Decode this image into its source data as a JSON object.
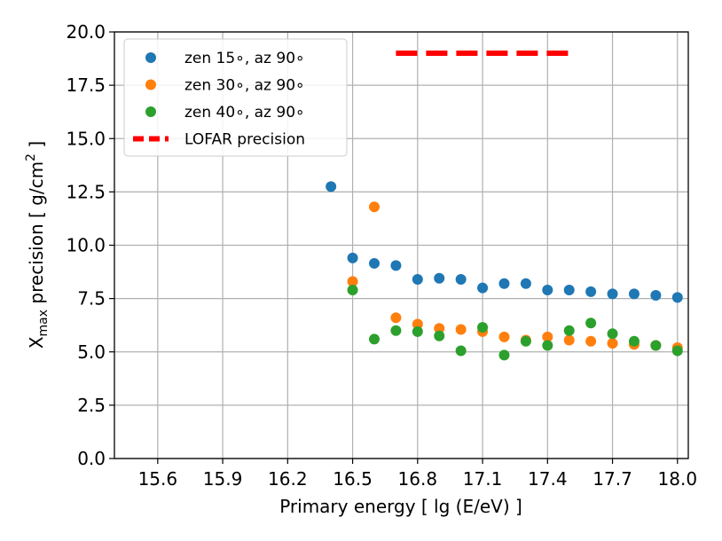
{
  "chart_data": {
    "type": "scatter",
    "xlabel": "Primary energy [ lg (E/eV) ]",
    "ylabel": {
      "prefix": "X",
      "sub": "max",
      "middle": " precision [ g/cm",
      "sup": "2",
      "suffix": " ]"
    },
    "xlim": [
      15.4,
      18.05
    ],
    "ylim": [
      0,
      20
    ],
    "x_ticks": [
      15.6,
      15.9,
      16.2,
      16.5,
      16.8,
      17.1,
      17.4,
      17.7,
      18.0
    ],
    "x_tick_labels": [
      "15.6",
      "15.9",
      "16.2",
      "16.5",
      "16.8",
      "17.1",
      "17.4",
      "17.7",
      "18.0"
    ],
    "y_ticks": [
      0,
      2.5,
      5,
      7.5,
      10,
      12.5,
      15,
      17.5,
      20
    ],
    "y_tick_labels": [
      "0.0",
      "2.5",
      "5.0",
      "7.5",
      "10.0",
      "12.5",
      "15.0",
      "17.5",
      "20.0"
    ],
    "grid": true,
    "legend_position": "top-left",
    "series": [
      {
        "name": "zen 15∘, az 90∘",
        "color": "#1f77b4",
        "marker": "circle",
        "x": [
          16.4,
          16.5,
          16.6,
          16.7,
          16.8,
          16.9,
          17.0,
          17.1,
          17.2,
          17.3,
          17.4,
          17.5,
          17.6,
          17.7,
          17.8,
          17.9,
          18.0
        ],
        "y": [
          12.75,
          9.4,
          9.15,
          9.05,
          8.4,
          8.45,
          8.4,
          8.0,
          8.2,
          8.2,
          7.9,
          7.9,
          7.82,
          7.72,
          7.72,
          7.65,
          7.55
        ]
      },
      {
        "name": "zen 30∘, az 90∘",
        "color": "#ff7f0e",
        "marker": "circle",
        "x": [
          16.5,
          16.6,
          16.7,
          16.8,
          16.9,
          17.0,
          17.1,
          17.2,
          17.3,
          17.4,
          17.5,
          17.6,
          17.7,
          17.8,
          17.9,
          18.0
        ],
        "y": [
          8.3,
          11.8,
          6.6,
          6.3,
          6.1,
          6.05,
          5.95,
          5.7,
          5.55,
          5.7,
          5.55,
          5.5,
          5.4,
          5.35,
          5.3,
          5.2
        ]
      },
      {
        "name": "zen 40∘, az 90∘",
        "color": "#2ca02c",
        "marker": "circle",
        "x": [
          16.5,
          16.6,
          16.7,
          16.8,
          16.9,
          17.0,
          17.1,
          17.2,
          17.3,
          17.4,
          17.5,
          17.6,
          17.7,
          17.8,
          17.9,
          18.0
        ],
        "y": [
          7.9,
          5.6,
          6.0,
          5.95,
          5.75,
          5.05,
          6.15,
          4.85,
          5.5,
          5.3,
          6.0,
          6.35,
          5.85,
          5.5,
          5.3,
          5.05
        ]
      },
      {
        "name": "LOFAR precision",
        "color": "#ff0000",
        "marker": "dashed-line",
        "x": [
          16.7,
          17.5
        ],
        "y": [
          19.0,
          19.0
        ]
      }
    ]
  }
}
